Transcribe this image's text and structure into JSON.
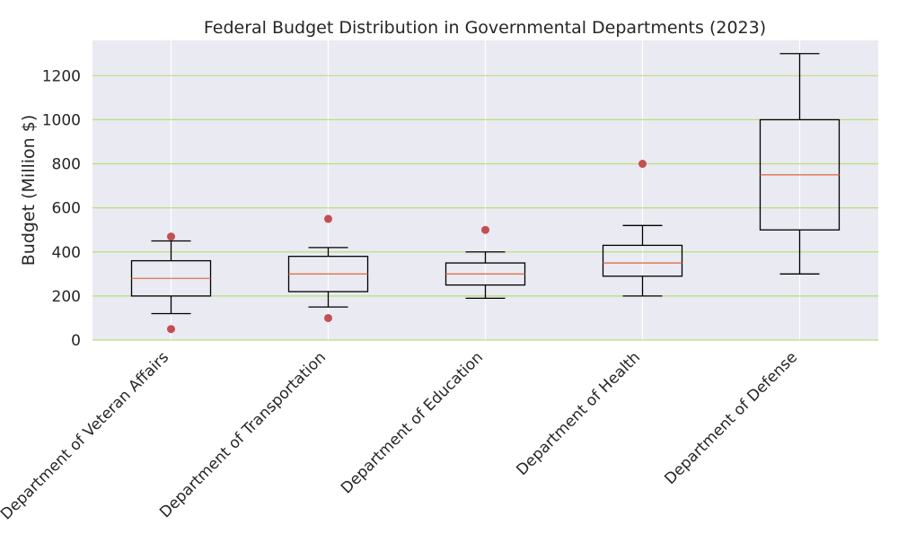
{
  "chart_data": {
    "type": "boxplot",
    "title": "Federal Budget Distribution in Governmental Departments (2023)",
    "xlabel": "",
    "ylabel": "Budget (Million $)",
    "ylim": [
      0,
      1360
    ],
    "yticks": [
      0,
      200,
      400,
      600,
      800,
      1000,
      1200
    ],
    "grid": true,
    "categories": [
      "Department of Veteran Affairs",
      "Department of Transportation",
      "Department of Education",
      "Department of Health",
      "Department of Defense"
    ],
    "boxes": [
      {
        "whisker_low": 120,
        "q1": 200,
        "median": 280,
        "q3": 360,
        "whisker_high": 450,
        "outliers": [
          50,
          470
        ]
      },
      {
        "whisker_low": 150,
        "q1": 220,
        "median": 300,
        "q3": 380,
        "whisker_high": 420,
        "outliers": [
          100,
          550
        ]
      },
      {
        "whisker_low": 190,
        "q1": 250,
        "median": 300,
        "q3": 350,
        "whisker_high": 400,
        "outliers": [
          500
        ]
      },
      {
        "whisker_low": 200,
        "q1": 290,
        "median": 350,
        "q3": 430,
        "whisker_high": 520,
        "outliers": [
          800
        ]
      },
      {
        "whisker_low": 300,
        "q1": 500,
        "median": 750,
        "q3": 1000,
        "whisker_high": 1300,
        "outliers": []
      }
    ],
    "colors": {
      "background": "#eaeaf2",
      "hgrid": "#b8e07a",
      "vgrid": "#ffffff",
      "box": "#000000",
      "median": "#e0704a",
      "outlier": "#c44e52"
    }
  }
}
